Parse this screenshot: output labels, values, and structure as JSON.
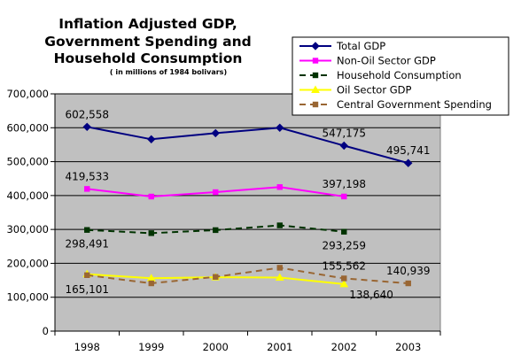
{
  "chart_data": {
    "type": "line",
    "title_lines": [
      "Inflation Adjusted GDP,",
      "Government Spending and",
      "Household Consumption"
    ],
    "subtitle": "(   in millions of 1984 bolivars)",
    "xlabel": "",
    "ylabel": "",
    "categories": [
      "1998",
      "1999",
      "2000",
      "2001",
      "2002",
      "2003"
    ],
    "ylim": [
      0,
      700000
    ],
    "yticks": [
      0,
      100000,
      200000,
      300000,
      400000,
      500000,
      600000,
      700000
    ],
    "ytick_labels": [
      "0",
      "100,000",
      "200,000",
      "300,000",
      "400,000",
      "500,000",
      "600,000",
      "700,000"
    ],
    "grid": "horizontal",
    "plot_background": "#c0c0c0",
    "legend_position": "top-right",
    "series": [
      {
        "name": "Total GDP",
        "color": "#000080",
        "marker": "diamond",
        "dash": "solid",
        "values": [
          602558,
          566000,
          584000,
          600000,
          547175,
          495741
        ]
      },
      {
        "name": "Non-Oil Sector GDP",
        "color": "#ff00ff",
        "marker": "square",
        "dash": "solid",
        "values": [
          419533,
          397000,
          410000,
          425000,
          397198,
          null
        ]
      },
      {
        "name": "Household Consumption",
        "color": "#003300",
        "marker": "square",
        "dash": "dashed",
        "values": [
          298491,
          289000,
          298000,
          312000,
          293259,
          null
        ]
      },
      {
        "name": "Oil Sector GDP",
        "color": "#ffff00",
        "marker": "triangle",
        "dash": "solid",
        "values": [
          168000,
          156000,
          159000,
          158000,
          138640,
          null
        ]
      },
      {
        "name": "Central Government Spending",
        "color": "#996633",
        "marker": "square",
        "dash": "dashed",
        "values": [
          165101,
          141000,
          160000,
          187000,
          155562,
          140939
        ]
      }
    ],
    "annotations": [
      {
        "text": "602,558",
        "category": "1998",
        "value": 602558,
        "offset": "above"
      },
      {
        "text": "547,175",
        "category": "2002",
        "value": 547175,
        "offset": "above"
      },
      {
        "text": "495,741",
        "category": "2003",
        "value": 495741,
        "offset": "above"
      },
      {
        "text": "419,533",
        "category": "1998",
        "value": 419533,
        "offset": "above"
      },
      {
        "text": "397,198",
        "category": "2002",
        "value": 397198,
        "offset": "above"
      },
      {
        "text": "298,491",
        "category": "1998",
        "value": 298491,
        "offset": "below"
      },
      {
        "text": "293,259",
        "category": "2002",
        "value": 293259,
        "offset": "below"
      },
      {
        "text": "165,101",
        "category": "1998",
        "value": 165101,
        "offset": "below"
      },
      {
        "text": "155,562",
        "category": "2002",
        "value": 155562,
        "offset": "above"
      },
      {
        "text": "140,939",
        "category": "2003",
        "value": 140939,
        "offset": "above"
      },
      {
        "text": "138,640",
        "category": "2002",
        "value": 138640,
        "offset": "below-right"
      }
    ]
  }
}
